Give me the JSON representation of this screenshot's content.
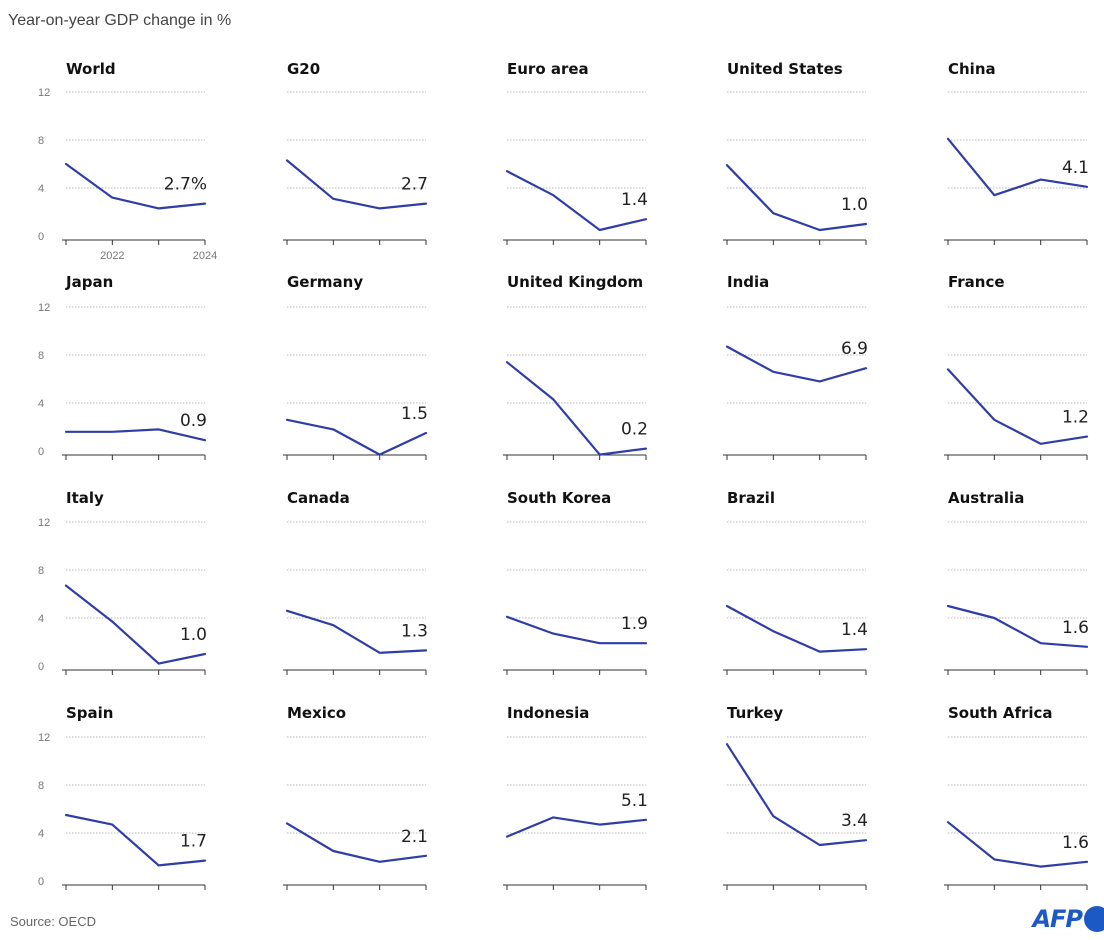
{
  "subtitle": "Year-on-year GDP change in %",
  "source": "Source: OECD",
  "logo_text": "AFP",
  "colors": {
    "line": "#2f3ea6",
    "grid": "#b9b9b9",
    "logo": "#1d59c4"
  },
  "chart_data": {
    "type": "line",
    "layout": "small-multiples",
    "x": [
      2021,
      2022,
      2023,
      2024
    ],
    "x_tick_labels": [
      "2022",
      "2024"
    ],
    "ylim": [
      0,
      12
    ],
    "y_ticks": [
      0,
      4,
      8,
      12
    ],
    "grid": true,
    "panels": [
      {
        "name": "World",
        "values": [
          6.0,
          3.2,
          2.3,
          2.7
        ],
        "end_label": "2.7%"
      },
      {
        "name": "G20",
        "values": [
          6.3,
          3.1,
          2.3,
          2.7
        ],
        "end_label": "2.7"
      },
      {
        "name": "Euro area",
        "values": [
          5.4,
          3.4,
          0.5,
          1.4
        ],
        "end_label": "1.4"
      },
      {
        "name": "United States",
        "values": [
          5.9,
          1.9,
          0.5,
          1.0
        ],
        "end_label": "1.0"
      },
      {
        "name": "China",
        "values": [
          8.1,
          3.4,
          4.7,
          4.1
        ],
        "end_label": "4.1"
      },
      {
        "name": "Japan",
        "values": [
          1.6,
          1.6,
          1.8,
          0.9
        ],
        "end_label": "0.9"
      },
      {
        "name": "Germany",
        "values": [
          2.6,
          1.8,
          -0.3,
          1.5
        ],
        "end_label": "1.5"
      },
      {
        "name": "United Kingdom",
        "values": [
          7.4,
          4.3,
          -0.3,
          0.2
        ],
        "end_label": "0.2"
      },
      {
        "name": "India",
        "values": [
          8.7,
          6.6,
          5.8,
          6.9
        ],
        "end_label": "6.9"
      },
      {
        "name": "France",
        "values": [
          6.8,
          2.6,
          0.6,
          1.2
        ],
        "end_label": "1.2"
      },
      {
        "name": "Italy",
        "values": [
          6.7,
          3.7,
          0.2,
          1.0
        ],
        "end_label": "1.0"
      },
      {
        "name": "Canada",
        "values": [
          4.6,
          3.4,
          1.1,
          1.3
        ],
        "end_label": "1.3"
      },
      {
        "name": "South Korea",
        "values": [
          4.1,
          2.7,
          1.9,
          1.9
        ],
        "end_label": "1.9"
      },
      {
        "name": "Brazil",
        "values": [
          5.0,
          2.9,
          1.2,
          1.4
        ],
        "end_label": "1.4"
      },
      {
        "name": "Australia",
        "values": [
          5.0,
          4.0,
          1.9,
          1.6
        ],
        "end_label": "1.6"
      },
      {
        "name": "Spain",
        "values": [
          5.5,
          4.7,
          1.3,
          1.7
        ],
        "end_label": "1.7"
      },
      {
        "name": "Mexico",
        "values": [
          4.8,
          2.5,
          1.6,
          2.1
        ],
        "end_label": "2.1"
      },
      {
        "name": "Indonesia",
        "values": [
          3.7,
          5.3,
          4.7,
          5.1
        ],
        "end_label": "5.1"
      },
      {
        "name": "Turkey",
        "values": [
          11.4,
          5.4,
          3.0,
          3.4
        ],
        "end_label": "3.4"
      },
      {
        "name": "South Africa",
        "values": [
          4.9,
          1.8,
          1.2,
          1.6
        ],
        "end_label": "1.6"
      }
    ]
  }
}
